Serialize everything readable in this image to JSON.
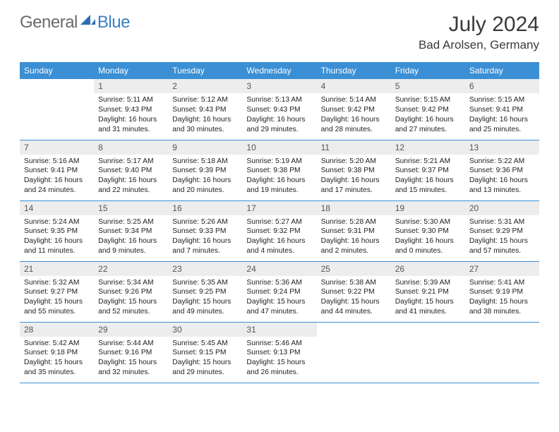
{
  "brand": {
    "general": "General",
    "blue": "Blue"
  },
  "title": "July 2024",
  "location": "Bad Arolsen, Germany",
  "colors": {
    "header_bg": "#3b8fd4",
    "header_text": "#ffffff",
    "daynum_bg": "#ededed",
    "border": "#3b8fd4",
    "brand_gray": "#6a6a6a",
    "brand_blue": "#3b7fc4"
  },
  "typography": {
    "title_fontsize": 30,
    "location_fontsize": 17,
    "dayheader_fontsize": 12,
    "cell_fontsize": 10.3
  },
  "type": "table",
  "columns": [
    "Sunday",
    "Monday",
    "Tuesday",
    "Wednesday",
    "Thursday",
    "Friday",
    "Saturday"
  ],
  "weeks": [
    [
      null,
      {
        "n": "1",
        "sunrise": "5:11 AM",
        "sunset": "9:43 PM",
        "daylight": "16 hours and 31 minutes."
      },
      {
        "n": "2",
        "sunrise": "5:12 AM",
        "sunset": "9:43 PM",
        "daylight": "16 hours and 30 minutes."
      },
      {
        "n": "3",
        "sunrise": "5:13 AM",
        "sunset": "9:43 PM",
        "daylight": "16 hours and 29 minutes."
      },
      {
        "n": "4",
        "sunrise": "5:14 AM",
        "sunset": "9:42 PM",
        "daylight": "16 hours and 28 minutes."
      },
      {
        "n": "5",
        "sunrise": "5:15 AM",
        "sunset": "9:42 PM",
        "daylight": "16 hours and 27 minutes."
      },
      {
        "n": "6",
        "sunrise": "5:15 AM",
        "sunset": "9:41 PM",
        "daylight": "16 hours and 25 minutes."
      }
    ],
    [
      {
        "n": "7",
        "sunrise": "5:16 AM",
        "sunset": "9:41 PM",
        "daylight": "16 hours and 24 minutes."
      },
      {
        "n": "8",
        "sunrise": "5:17 AM",
        "sunset": "9:40 PM",
        "daylight": "16 hours and 22 minutes."
      },
      {
        "n": "9",
        "sunrise": "5:18 AM",
        "sunset": "9:39 PM",
        "daylight": "16 hours and 20 minutes."
      },
      {
        "n": "10",
        "sunrise": "5:19 AM",
        "sunset": "9:38 PM",
        "daylight": "16 hours and 19 minutes."
      },
      {
        "n": "11",
        "sunrise": "5:20 AM",
        "sunset": "9:38 PM",
        "daylight": "16 hours and 17 minutes."
      },
      {
        "n": "12",
        "sunrise": "5:21 AM",
        "sunset": "9:37 PM",
        "daylight": "16 hours and 15 minutes."
      },
      {
        "n": "13",
        "sunrise": "5:22 AM",
        "sunset": "9:36 PM",
        "daylight": "16 hours and 13 minutes."
      }
    ],
    [
      {
        "n": "14",
        "sunrise": "5:24 AM",
        "sunset": "9:35 PM",
        "daylight": "16 hours and 11 minutes."
      },
      {
        "n": "15",
        "sunrise": "5:25 AM",
        "sunset": "9:34 PM",
        "daylight": "16 hours and 9 minutes."
      },
      {
        "n": "16",
        "sunrise": "5:26 AM",
        "sunset": "9:33 PM",
        "daylight": "16 hours and 7 minutes."
      },
      {
        "n": "17",
        "sunrise": "5:27 AM",
        "sunset": "9:32 PM",
        "daylight": "16 hours and 4 minutes."
      },
      {
        "n": "18",
        "sunrise": "5:28 AM",
        "sunset": "9:31 PM",
        "daylight": "16 hours and 2 minutes."
      },
      {
        "n": "19",
        "sunrise": "5:30 AM",
        "sunset": "9:30 PM",
        "daylight": "16 hours and 0 minutes."
      },
      {
        "n": "20",
        "sunrise": "5:31 AM",
        "sunset": "9:29 PM",
        "daylight": "15 hours and 57 minutes."
      }
    ],
    [
      {
        "n": "21",
        "sunrise": "5:32 AM",
        "sunset": "9:27 PM",
        "daylight": "15 hours and 55 minutes."
      },
      {
        "n": "22",
        "sunrise": "5:34 AM",
        "sunset": "9:26 PM",
        "daylight": "15 hours and 52 minutes."
      },
      {
        "n": "23",
        "sunrise": "5:35 AM",
        "sunset": "9:25 PM",
        "daylight": "15 hours and 49 minutes."
      },
      {
        "n": "24",
        "sunrise": "5:36 AM",
        "sunset": "9:24 PM",
        "daylight": "15 hours and 47 minutes."
      },
      {
        "n": "25",
        "sunrise": "5:38 AM",
        "sunset": "9:22 PM",
        "daylight": "15 hours and 44 minutes."
      },
      {
        "n": "26",
        "sunrise": "5:39 AM",
        "sunset": "9:21 PM",
        "daylight": "15 hours and 41 minutes."
      },
      {
        "n": "27",
        "sunrise": "5:41 AM",
        "sunset": "9:19 PM",
        "daylight": "15 hours and 38 minutes."
      }
    ],
    [
      {
        "n": "28",
        "sunrise": "5:42 AM",
        "sunset": "9:18 PM",
        "daylight": "15 hours and 35 minutes."
      },
      {
        "n": "29",
        "sunrise": "5:44 AM",
        "sunset": "9:16 PM",
        "daylight": "15 hours and 32 minutes."
      },
      {
        "n": "30",
        "sunrise": "5:45 AM",
        "sunset": "9:15 PM",
        "daylight": "15 hours and 29 minutes."
      },
      {
        "n": "31",
        "sunrise": "5:46 AM",
        "sunset": "9:13 PM",
        "daylight": "15 hours and 26 minutes."
      },
      null,
      null,
      null
    ]
  ],
  "labels": {
    "sunrise": "Sunrise:",
    "sunset": "Sunset:",
    "daylight": "Daylight:"
  }
}
